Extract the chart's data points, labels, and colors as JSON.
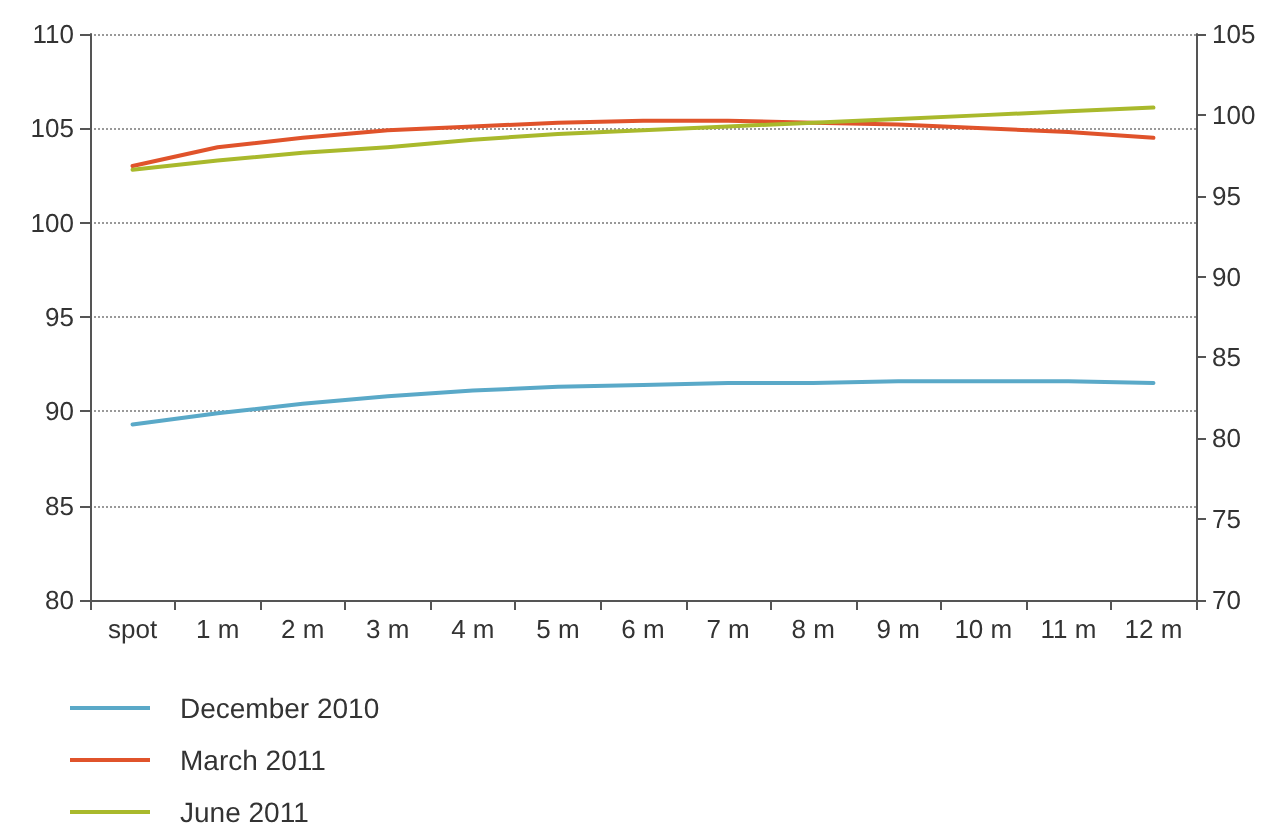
{
  "chart_data": {
    "type": "line",
    "categories": [
      "spot",
      "1 m",
      "2 m",
      "3 m",
      "4 m",
      "5 m",
      "6 m",
      "7 m",
      "8 m",
      "9 m",
      "10 m",
      "11 m",
      "12 m"
    ],
    "series": [
      {
        "name": "December 2010",
        "color": "#5aa9c8",
        "values": [
          89.3,
          89.9,
          90.4,
          90.8,
          91.1,
          91.3,
          91.4,
          91.5,
          91.5,
          91.6,
          91.6,
          91.6,
          91.5
        ]
      },
      {
        "name": "March 2011",
        "color": "#e0532b",
        "values": [
          103.0,
          104.0,
          104.5,
          104.9,
          105.1,
          105.3,
          105.4,
          105.4,
          105.3,
          105.2,
          105.0,
          104.8,
          104.5
        ]
      },
      {
        "name": "June 2011",
        "color": "#a9b92c",
        "values": [
          102.8,
          103.3,
          103.7,
          104.0,
          104.4,
          104.7,
          104.9,
          105.1,
          105.3,
          105.5,
          105.7,
          105.9,
          106.1
        ]
      }
    ],
    "ylim": [
      80,
      110
    ],
    "yticks": [
      80,
      85,
      90,
      95,
      100,
      105,
      110
    ],
    "y2lim": [
      70,
      105
    ],
    "y2ticks": [
      70,
      75,
      80,
      85,
      90,
      95,
      100,
      105
    ],
    "grid": "y",
    "legend": "bottom left",
    "marker": "none",
    "line_style": "solid"
  }
}
